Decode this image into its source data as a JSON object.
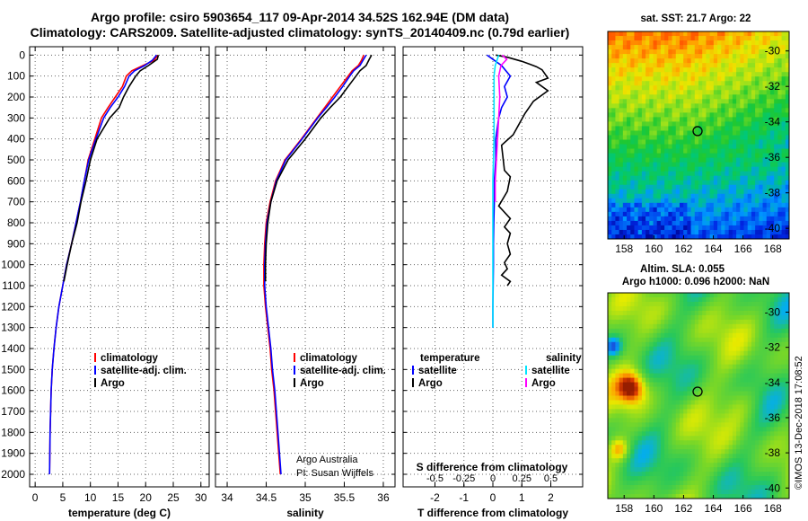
{
  "title": {
    "line1": "Argo profile: csiro 5903654_117 09-Apr-2014 34.52S 162.94E (DM data)",
    "line2": "Climatology: CARS2009. Satellite-adjusted climatology: synTS_20140409.nc (0.79d earlier)"
  },
  "colors": {
    "climatology": "#ff0000",
    "satellite": "#0000ff",
    "argo": "#000000",
    "satellite_salinity": "#00e5ff",
    "argo_salinity": "#ff00ff"
  },
  "credit": {
    "line1": "Argo Australia",
    "line2": "PI: Susan Wijffels"
  },
  "timestamp": "©IMOS 13-Dec-2018 17:08:52",
  "chart_data": [
    {
      "id": "temperature",
      "type": "line",
      "xlabel": "temperature (deg C)",
      "ylabel": "",
      "xlim": [
        -1,
        31.5
      ],
      "ylim": [
        2060,
        -40
      ],
      "xticks": [
        0,
        5,
        10,
        15,
        20,
        25,
        30
      ],
      "yticks": [
        0,
        100,
        200,
        300,
        400,
        500,
        600,
        700,
        800,
        900,
        1000,
        1100,
        1200,
        1300,
        1400,
        1500,
        1600,
        1700,
        1800,
        1900,
        2000
      ],
      "grid": true,
      "legend": [
        "climatology",
        "satellite-adj. clim.",
        "Argo"
      ],
      "series": [
        {
          "name": "climatology",
          "color": "#ff0000",
          "x": [
            22.2,
            21.5,
            19.5,
            17.5,
            16.5,
            15.8,
            14.5,
            13.2,
            12.0,
            10.8,
            9.6,
            8.9,
            8.2,
            7.4,
            6.6,
            5.7,
            5.0,
            4.3,
            3.8,
            3.4,
            3.1,
            2.9,
            2.7,
            2.6
          ],
          "y": [
            0,
            25,
            50,
            75,
            100,
            150,
            200,
            250,
            300,
            400,
            500,
            600,
            700,
            800,
            900,
            1000,
            1100,
            1200,
            1300,
            1400,
            1500,
            1600,
            1800,
            2000
          ]
        },
        {
          "name": "satellite-adj. clim.",
          "color": "#0000ff",
          "x": [
            22.0,
            21.2,
            19.8,
            18.0,
            17.0,
            16.2,
            15.0,
            13.6,
            12.4,
            11.0,
            9.7,
            8.9,
            8.2,
            7.4,
            6.6,
            5.7,
            5.0,
            4.3,
            3.8,
            3.4,
            3.1,
            2.9,
            2.7,
            2.6
          ],
          "y": [
            0,
            25,
            50,
            75,
            100,
            150,
            200,
            250,
            300,
            400,
            500,
            600,
            700,
            800,
            900,
            1000,
            1100,
            1200,
            1300,
            1400,
            1500,
            1600,
            1800,
            2000
          ]
        },
        {
          "name": "Argo",
          "color": "#000000",
          "x": [
            22.3,
            22.1,
            20.5,
            19.0,
            18.2,
            17.0,
            16.0,
            15.2,
            13.5,
            11.2,
            10.0,
            9.2,
            8.3,
            7.6,
            6.6,
            5.8,
            5.2
          ],
          "y": [
            0,
            20,
            50,
            75,
            100,
            150,
            200,
            250,
            300,
            400,
            500,
            600,
            700,
            800,
            900,
            1000,
            1080
          ]
        }
      ]
    },
    {
      "id": "salinity",
      "type": "line",
      "xlabel": "salinity",
      "ylabel": "",
      "xlim": [
        33.85,
        36.15
      ],
      "ylim": [
        2060,
        -40
      ],
      "xticks": [
        34,
        34.5,
        35,
        35.5,
        36
      ],
      "grid": true,
      "legend": [
        "climatology",
        "satellite-adj. clim.",
        "Argo"
      ],
      "series": [
        {
          "name": "climatology",
          "color": "#ff0000",
          "x": [
            35.75,
            35.72,
            35.68,
            35.6,
            35.55,
            35.45,
            35.35,
            35.25,
            35.15,
            34.95,
            34.74,
            34.62,
            34.55,
            34.5,
            34.48,
            34.47,
            34.47,
            34.49,
            34.52,
            34.55,
            34.57,
            34.6,
            34.64,
            34.68
          ],
          "y": [
            0,
            25,
            50,
            75,
            100,
            150,
            200,
            250,
            300,
            400,
            500,
            600,
            700,
            800,
            900,
            1000,
            1100,
            1200,
            1300,
            1400,
            1500,
            1600,
            1800,
            2000
          ]
        },
        {
          "name": "satellite-adj. clim.",
          "color": "#0000ff",
          "x": [
            35.78,
            35.74,
            35.7,
            35.62,
            35.57,
            35.48,
            35.38,
            35.27,
            35.16,
            34.96,
            34.75,
            34.63,
            34.56,
            34.51,
            34.49,
            34.48,
            34.48,
            34.5,
            34.53,
            34.56,
            34.58,
            34.61,
            34.65,
            34.69
          ],
          "y": [
            0,
            25,
            50,
            75,
            100,
            150,
            200,
            250,
            300,
            400,
            500,
            600,
            700,
            800,
            900,
            1000,
            1100,
            1200,
            1300,
            1400,
            1500,
            1600,
            1800,
            2000
          ]
        },
        {
          "name": "Argo",
          "color": "#000000",
          "x": [
            35.85,
            35.82,
            35.78,
            35.7,
            35.65,
            35.55,
            35.45,
            35.32,
            35.2,
            35.0,
            34.78,
            34.64,
            34.56,
            34.52,
            34.5,
            34.49,
            34.49
          ],
          "y": [
            0,
            20,
            50,
            75,
            100,
            150,
            200,
            250,
            300,
            400,
            500,
            600,
            700,
            800,
            900,
            1000,
            1080
          ]
        }
      ]
    },
    {
      "id": "difference",
      "type": "line",
      "xlabel": "T difference from climatology",
      "xlabel2": "S difference from climatology",
      "xlim": [
        -3.1,
        3.1
      ],
      "xlim_salinity": [
        -0.775,
        0.775
      ],
      "ylim": [
        2060,
        -40
      ],
      "xticks": [
        -2,
        -1,
        0,
        1,
        2
      ],
      "xtick_labels": [
        "-2",
        "-1",
        "0",
        "1",
        "2"
      ],
      "xticks_salinity": [
        -0.5,
        -0.25,
        0,
        0.25,
        0.5
      ],
      "xtick_labels_salinity": [
        "-0.5",
        "-0.25",
        "0",
        "0.25",
        "0.5"
      ],
      "grid": true,
      "legend_titles": [
        "temperature",
        "salinity"
      ],
      "legend": [
        "satellite",
        "Argo",
        "satellite",
        "Argo"
      ],
      "series": [
        {
          "name": "temperature satellite",
          "color": "#0000ff",
          "axis": "T",
          "x": [
            -0.2,
            0.3,
            0.6,
            0.4,
            0.5,
            0.3,
            0.2,
            0.1,
            0.1,
            0.05,
            0.05,
            0.03,
            0.02,
            0.02,
            0.01,
            0.0,
            0.0
          ],
          "y": [
            0,
            50,
            100,
            150,
            200,
            250,
            300,
            400,
            500,
            600,
            700,
            800,
            900,
            1000,
            1100,
            1200,
            1300
          ]
        },
        {
          "name": "temperature Argo",
          "color": "#000000",
          "axis": "T",
          "x": [
            0.1,
            0.5,
            1.0,
            1.3,
            1.5,
            1.7,
            1.9,
            1.5,
            1.9,
            1.4,
            1.1,
            0.7,
            0.3,
            0.4,
            0.6,
            0.5,
            0.2,
            0.6,
            0.4,
            0.6,
            0.5,
            0.6,
            0.4,
            0.5,
            0.3,
            0.6,
            0.5
          ],
          "y": [
            0,
            10,
            30,
            45,
            55,
            70,
            110,
            130,
            170,
            220,
            280,
            380,
            430,
            550,
            580,
            650,
            720,
            780,
            820,
            850,
            900,
            950,
            990,
            1020,
            1050,
            1080,
            1100
          ]
        },
        {
          "name": "salinity satellite",
          "color": "#00e5ff",
          "axis": "S",
          "x": [
            0.05,
            0.02,
            0.01,
            0.01,
            0.01,
            0.0,
            0.0,
            0.0,
            0.0
          ],
          "y": [
            0,
            50,
            100,
            200,
            400,
            600,
            800,
            1000,
            1300
          ]
        },
        {
          "name": "salinity Argo",
          "color": "#ff00ff",
          "axis": "S",
          "x": [
            0.08,
            0.12,
            0.07,
            0.05,
            0.06,
            0.05,
            0.04,
            0.03,
            0.02,
            0.02
          ],
          "y": [
            0,
            20,
            50,
            100,
            200,
            300,
            400,
            500,
            600,
            700
          ]
        }
      ]
    },
    {
      "id": "sst_map",
      "type": "heatmap",
      "title": "sat. SST: 21.7 Argo: 22",
      "xticks": [
        158,
        160,
        162,
        164,
        166,
        168
      ],
      "yticks": [
        -30,
        -32,
        -34,
        -36,
        -38,
        -40
      ],
      "xlim": [
        156.9,
        169.1
      ],
      "ylim": [
        -40.6,
        -28.9
      ],
      "marker": {
        "lon": 162.94,
        "lat": -34.52
      }
    },
    {
      "id": "sla_map",
      "type": "heatmap",
      "title1": "Altim. SLA: 0.055",
      "title2": "Argo h1000: 0.096 h2000: NaN",
      "xticks": [
        158,
        160,
        162,
        164,
        166,
        168
      ],
      "yticks": [
        -30,
        -32,
        -34,
        -36,
        -38,
        -40
      ],
      "xlim": [
        156.9,
        169.1
      ],
      "ylim": [
        -40.6,
        -28.9
      ],
      "marker": {
        "lon": 162.94,
        "lat": -34.52
      }
    }
  ]
}
